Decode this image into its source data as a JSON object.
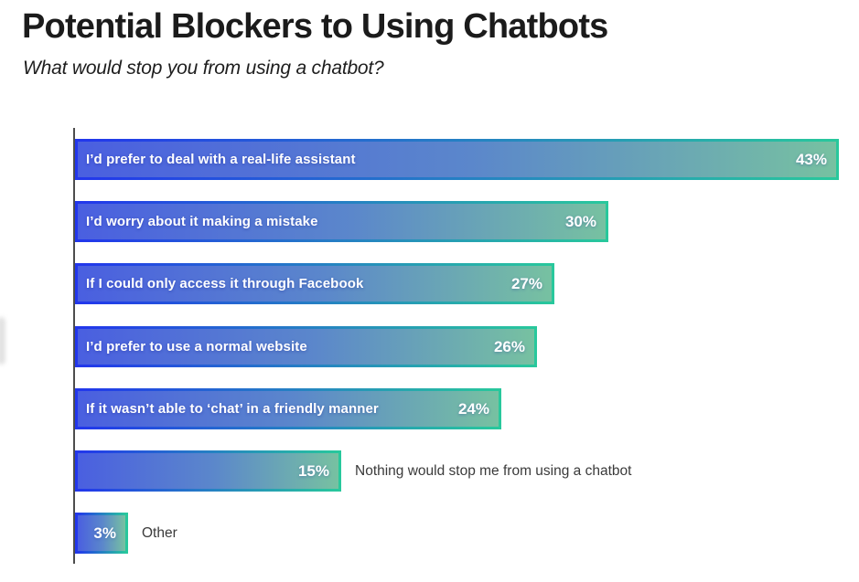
{
  "header": {
    "title": "Potential Blockers to Using Chatbots",
    "subtitle": "What would stop you from using a chatbot?"
  },
  "chart_data": {
    "type": "bar",
    "orientation": "horizontal",
    "title": "Potential Blockers to Using Chatbots",
    "subtitle": "What would stop you from using a chatbot?",
    "categories": [
      "I’d prefer to deal with a real-life assistant",
      "I’d worry about it making a mistake",
      "If I could only access it through Facebook",
      "I’d prefer to use a normal website",
      "If it wasn’t able to ‘chat’ in a friendly manner",
      "Nothing would stop me from using a chatbot",
      "Other"
    ],
    "values": [
      43,
      30,
      27,
      26,
      24,
      15,
      3
    ],
    "value_labels": [
      "43%",
      "30%",
      "27%",
      "26%",
      "24%",
      "15%",
      "3%"
    ],
    "label_placement": [
      "inside",
      "inside",
      "inside",
      "inside",
      "inside",
      "outside",
      "outside"
    ],
    "xlabel": "",
    "ylabel": "",
    "xlim": [
      0,
      43.2
    ],
    "grid": "off",
    "legend": "none",
    "colors": {
      "bar_fill_gradient_start": "#4a5fe0",
      "bar_fill_gradient_mid": "#5b87cb",
      "bar_fill_gradient_end": "#77c1a1",
      "bar_border_gradient_start": "#2236ec",
      "bar_border_gradient_end": "#28c89c",
      "inside_text": "#ffffff",
      "outside_text": "#3a3a3a",
      "axis_line": "#4d4d4d",
      "title_text": "#1b1b1b"
    }
  }
}
